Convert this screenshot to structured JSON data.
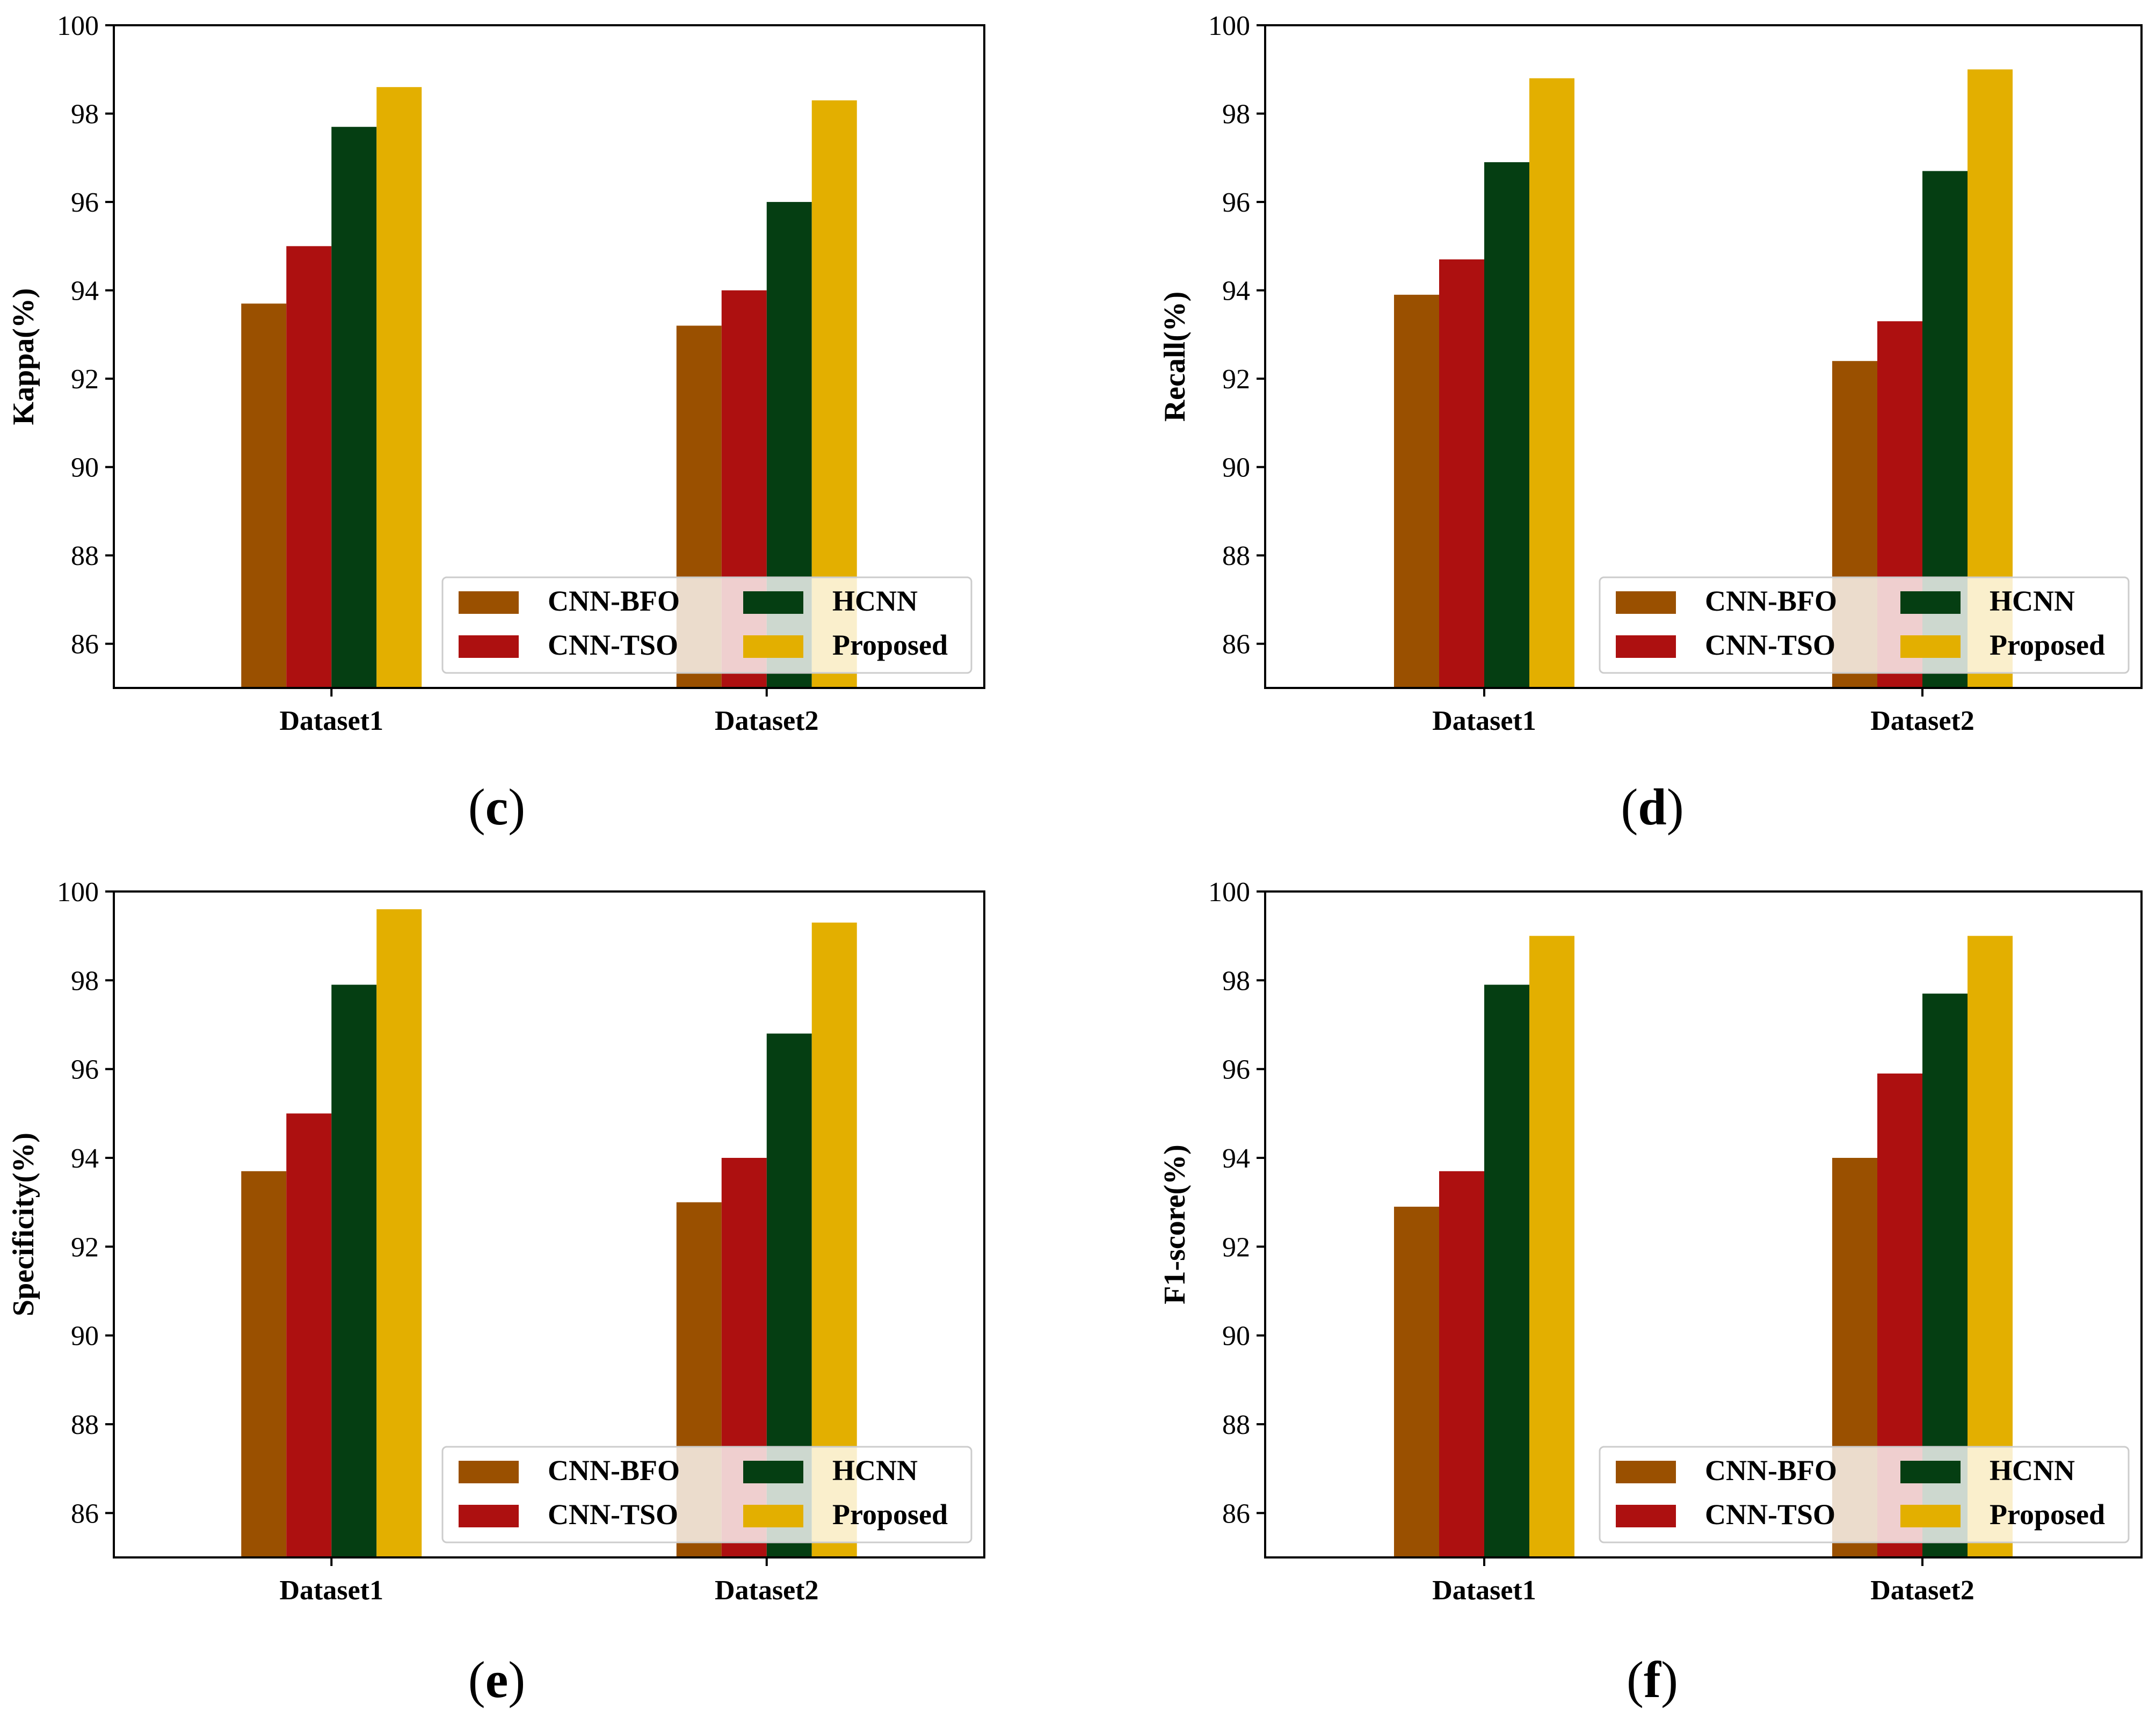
{
  "colors": {
    "CNN-BFO": "#9a5000",
    "CNN-TSO": "#ad1010",
    "HCNN": "#053e12",
    "Proposed": "#e3af00"
  },
  "chart_data": [
    {
      "type": "bar",
      "panel": "(c)",
      "panel_paren_open": "(",
      "panel_letter": "c",
      "panel_paren_close": ")",
      "ylabel": "Kappa(%)",
      "xlabel": "",
      "categories": [
        "Dataset1",
        "Dataset2"
      ],
      "ylim": [
        85,
        100
      ],
      "yticks": [
        "86",
        "88",
        "90",
        "92",
        "94",
        "96",
        "98",
        "100"
      ],
      "legend_position": "lower-right",
      "series": [
        {
          "name": "CNN-BFO",
          "values": [
            93.7,
            93.2
          ]
        },
        {
          "name": "CNN-TSO",
          "values": [
            95.0,
            94.0
          ]
        },
        {
          "name": "HCNN",
          "values": [
            97.7,
            96.0
          ]
        },
        {
          "name": "Proposed",
          "values": [
            98.6,
            98.3
          ]
        }
      ]
    },
    {
      "type": "bar",
      "panel": "(d)",
      "panel_paren_open": "(",
      "panel_letter": "d",
      "panel_paren_close": ")",
      "ylabel": "Recall(%)",
      "xlabel": "",
      "categories": [
        "Dataset1",
        "Dataset2"
      ],
      "ylim": [
        85,
        100
      ],
      "yticks": [
        "86",
        "88",
        "90",
        "92",
        "94",
        "96",
        "98",
        "100"
      ],
      "legend_position": "lower-right",
      "series": [
        {
          "name": "CNN-BFO",
          "values": [
            93.9,
            92.4
          ]
        },
        {
          "name": "CNN-TSO",
          "values": [
            94.7,
            93.3
          ]
        },
        {
          "name": "HCNN",
          "values": [
            96.9,
            96.7
          ]
        },
        {
          "name": "Proposed",
          "values": [
            98.8,
            99.0
          ]
        }
      ]
    },
    {
      "type": "bar",
      "panel": "(e)",
      "panel_paren_open": "(",
      "panel_letter": "e",
      "panel_paren_close": ")",
      "ylabel": "Specificity(%)",
      "xlabel": "",
      "categories": [
        "Dataset1",
        "Dataset2"
      ],
      "ylim": [
        85,
        100
      ],
      "yticks": [
        "86",
        "88",
        "90",
        "92",
        "94",
        "96",
        "98",
        "100"
      ],
      "legend_position": "lower-right",
      "series": [
        {
          "name": "CNN-BFO",
          "values": [
            93.7,
            93.0
          ]
        },
        {
          "name": "CNN-TSO",
          "values": [
            95.0,
            94.0
          ]
        },
        {
          "name": "HCNN",
          "values": [
            97.9,
            96.8
          ]
        },
        {
          "name": "Proposed",
          "values": [
            99.6,
            99.3
          ]
        }
      ]
    },
    {
      "type": "bar",
      "panel": "(f)",
      "panel_paren_open": "(",
      "panel_letter": "f",
      "panel_paren_close": ")",
      "ylabel": "F1-score(%)",
      "xlabel": "",
      "categories": [
        "Dataset1",
        "Dataset2"
      ],
      "ylim": [
        85,
        100
      ],
      "yticks": [
        "86",
        "88",
        "90",
        "92",
        "94",
        "96",
        "98",
        "100"
      ],
      "legend_position": "lower-right",
      "series": [
        {
          "name": "CNN-BFO",
          "values": [
            92.9,
            94.0
          ]
        },
        {
          "name": "CNN-TSO",
          "values": [
            93.7,
            95.9
          ]
        },
        {
          "name": "HCNN",
          "values": [
            97.9,
            97.7
          ]
        },
        {
          "name": "Proposed",
          "values": [
            99.0,
            99.0
          ]
        }
      ]
    }
  ]
}
